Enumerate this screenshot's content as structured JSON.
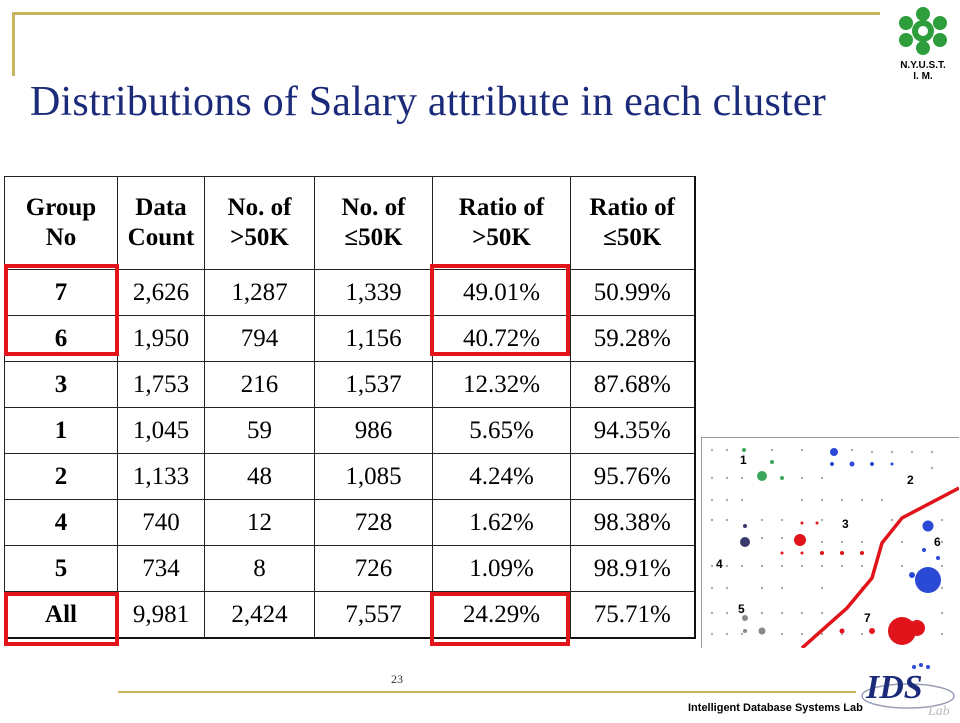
{
  "slide": {
    "title": "Distributions of Salary attribute in each cluster",
    "page_number": "23",
    "lab_name": "Intelligent Database Systems Lab",
    "school_logo_text": [
      "N.Y.U.S.T.",
      "I. M."
    ],
    "ids_logo_text": "IDS Lab",
    "accent_color": "#e0141a",
    "title_color": "#1c2a7a"
  },
  "table": {
    "headers": [
      [
        "Group",
        "No"
      ],
      [
        "Data",
        "Count"
      ],
      [
        "No. of",
        ">50K"
      ],
      [
        "No. of",
        "≤50K"
      ],
      [
        "Ratio of",
        ">50K"
      ],
      [
        "Ratio of",
        "≤50K"
      ]
    ],
    "rows": [
      [
        "7",
        "2,626",
        "1,287",
        "1,339",
        "49.01%",
        "50.99%"
      ],
      [
        "6",
        "1,950",
        "794",
        "1,156",
        "40.72%",
        "59.28%"
      ],
      [
        "3",
        "1,753",
        "216",
        "1,537",
        "12.32%",
        "87.68%"
      ],
      [
        "1",
        "1,045",
        "59",
        "986",
        "5.65%",
        "94.35%"
      ],
      [
        "2",
        "1,133",
        "48",
        "1,085",
        "4.24%",
        "95.76%"
      ],
      [
        "4",
        "740",
        "12",
        "728",
        "1.62%",
        "98.38%"
      ],
      [
        "5",
        "734",
        "8",
        "726",
        "1.09%",
        "98.91%"
      ],
      [
        "All",
        "9,981",
        "2,424",
        "7,557",
        "24.29%",
        "75.71%"
      ]
    ],
    "highlighted": [
      "groups 7 and 6",
      "ratio >50K of groups 7 and 6",
      "All row group cell",
      "All row ratio >50K"
    ]
  },
  "cluster_map": {
    "labels": [
      "1",
      "2",
      "3",
      "4",
      "5",
      "6",
      "7"
    ]
  }
}
